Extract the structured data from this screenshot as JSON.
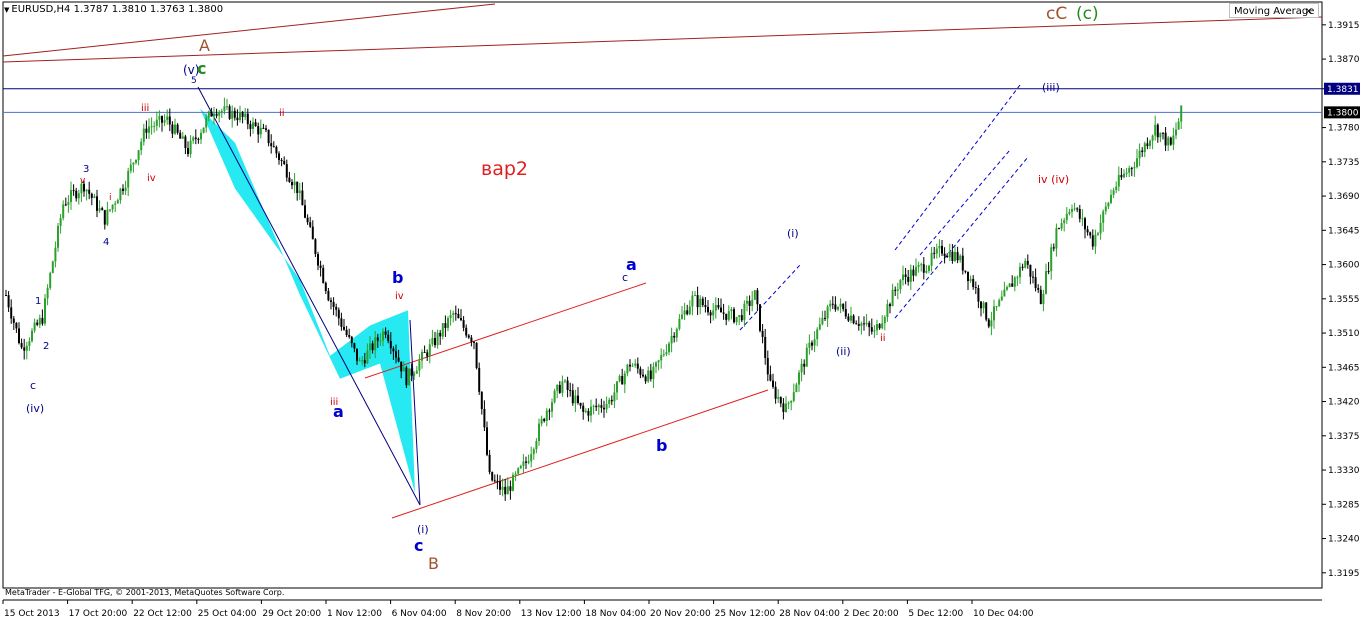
{
  "header": {
    "symbol_line": "EURUSD,H4  1.3787 1.3810 1.3763 1.3800",
    "indicator_label": "Moving Average",
    "close_glyph": "×"
  },
  "copyright": "MetaTrader - E-Global TFG, © 2001-2013, MetaQuotes Software Corp.",
  "chart_title": "вар2",
  "colors": {
    "bull_candle": "#2ca02c",
    "bear_candle": "#000000",
    "channel_red": "#e02020",
    "trend_brown": "#a02020",
    "level_blue": "#000080",
    "band_cyan": "#00e5ee",
    "wave_blue": "#00008b",
    "wave_red": "#d00000",
    "wave_green": "#228b22",
    "wave_brown": "#a0522d"
  },
  "chart_data": {
    "type": "candlestick",
    "symbol": "EURUSD",
    "timeframe": "H4",
    "last_bar": {
      "open": 1.3787,
      "high": 1.381,
      "low": 1.3763,
      "close": 1.38
    },
    "price_ticks": [
      "1.3915",
      "1.3870",
      "1.3831",
      "1.3780",
      "1.3735",
      "1.3690",
      "1.3645",
      "1.3600",
      "1.3555",
      "1.3510",
      "1.3465",
      "1.3420",
      "1.3375",
      "1.3330",
      "1.3285",
      "1.3240",
      "1.3195"
    ],
    "price_tick_values": [
      1.3915,
      1.387,
      1.3831,
      1.378,
      1.3735,
      1.369,
      1.3645,
      1.36,
      1.3555,
      1.351,
      1.3465,
      1.342,
      1.3375,
      1.333,
      1.3285,
      1.324,
      1.3195
    ],
    "highlighted_levels": [
      {
        "label": "1.3831",
        "value": 1.3831,
        "style": "dark"
      },
      {
        "label": "1.3800",
        "value": 1.38,
        "style": "current"
      }
    ],
    "time_ticks": [
      "15 Oct 2013",
      "17 Oct 20:00",
      "22 Oct 12:00",
      "25 Oct 04:00",
      "29 Oct 20:00",
      "1 Nov 12:00",
      "6 Nov 04:00",
      "8 Nov 20:00",
      "13 Nov 12:00",
      "18 Nov 04:00",
      "20 Nov 20:00",
      "25 Nov 12:00",
      "28 Nov 04:00",
      "2 Dec 20:00",
      "5 Dec 12:00",
      "10 Dec 04:00"
    ],
    "ylim": [
      1.3175,
      1.3945
    ],
    "bar_count": 248,
    "price_path": [
      [
        0,
        1.356
      ],
      [
        6,
        1.349
      ],
      [
        14,
        1.353
      ],
      [
        22,
        1.368
      ],
      [
        30,
        1.3705
      ],
      [
        38,
        1.366
      ],
      [
        46,
        1.371
      ],
      [
        54,
        1.378
      ],
      [
        62,
        1.379
      ],
      [
        70,
        1.375
      ],
      [
        80,
        1.3805
      ],
      [
        90,
        1.3795
      ],
      [
        100,
        1.377
      ],
      [
        112,
        1.37
      ],
      [
        124,
        1.356
      ],
      [
        136,
        1.347
      ],
      [
        146,
        1.3515
      ],
      [
        154,
        1.345
      ],
      [
        164,
        1.3495
      ],
      [
        172,
        1.3535
      ],
      [
        180,
        1.35
      ],
      [
        186,
        1.332
      ],
      [
        192,
        1.33
      ],
      [
        200,
        1.334
      ],
      [
        208,
        1.341
      ],
      [
        214,
        1.3445
      ],
      [
        222,
        1.3405
      ],
      [
        232,
        1.342
      ],
      [
        240,
        1.347
      ],
      [
        248,
        1.345
      ],
      [
        258,
        1.352
      ],
      [
        264,
        1.3555
      ],
      [
        272,
        1.354
      ],
      [
        282,
        1.353
      ],
      [
        288,
        1.356
      ],
      [
        294,
        1.344
      ],
      [
        300,
        1.341
      ],
      [
        310,
        1.35
      ],
      [
        318,
        1.355
      ],
      [
        326,
        1.353
      ],
      [
        334,
        1.351
      ],
      [
        344,
        1.358
      ],
      [
        354,
        1.36
      ],
      [
        360,
        1.362
      ],
      [
        366,
        1.361
      ],
      [
        372,
        1.3575
      ],
      [
        378,
        1.3525
      ],
      [
        386,
        1.357
      ],
      [
        392,
        1.3605
      ],
      [
        398,
        1.3555
      ],
      [
        404,
        1.3645
      ],
      [
        410,
        1.368
      ],
      [
        418,
        1.363
      ],
      [
        426,
        1.37
      ],
      [
        434,
        1.3735
      ],
      [
        442,
        1.378
      ],
      [
        448,
        1.3755
      ],
      [
        452,
        1.38
      ]
    ],
    "overlays": {
      "horizontal_levels": [
        1.3831,
        1.38
      ],
      "trend_lines": [
        {
          "color": "brown",
          "from": [
            0,
            1.3872
          ],
          "to": [
            225,
            1.3945
          ]
        },
        {
          "color": "brown",
          "from": [
            0,
            1.385
          ],
          "to": [
            600,
            1.3935
          ]
        },
        {
          "color": "red",
          "from": [
            180,
            1.349
          ],
          "to": [
            290,
            1.3585
          ]
        },
        {
          "color": "red",
          "from": [
            170,
            1.3305
          ],
          "to": [
            350,
            1.3468
          ]
        }
      ],
      "dashed_channel": {
        "color": "blue",
        "from_x": 430,
        "to_x": 505
      }
    },
    "wave_labels": [
      {
        "text": "cC",
        "color": "brown"
      },
      {
        "text": "(c)",
        "color": "green"
      },
      {
        "text": "A",
        "color": "brown"
      },
      {
        "text": "(v)",
        "color": "blue"
      },
      {
        "text": "c",
        "color": "green"
      },
      {
        "text": "5",
        "color": "blue"
      },
      {
        "text": "iii",
        "color": "red"
      },
      {
        "text": "ii",
        "color": "red"
      },
      {
        "text": "iv",
        "color": "red"
      },
      {
        "text": "3",
        "color": "blue"
      },
      {
        "text": "v",
        "color": "red"
      },
      {
        "text": "i",
        "color": "red"
      },
      {
        "text": "4",
        "color": "blue"
      },
      {
        "text": "1",
        "color": "blue"
      },
      {
        "text": "2",
        "color": "blue"
      },
      {
        "text": "c",
        "color": "blue"
      },
      {
        "text": "(iv)",
        "color": "blue"
      },
      {
        "text": "b",
        "color": "blue"
      },
      {
        "text": "a",
        "color": "blue"
      },
      {
        "text": "iii",
        "color": "red"
      },
      {
        "text": "iv",
        "color": "red"
      },
      {
        "text": "(i)",
        "color": "blue"
      },
      {
        "text": "c",
        "color": "blue"
      },
      {
        "text": "B",
        "color": "brown"
      },
      {
        "text": "a",
        "color": "blue"
      },
      {
        "text": "c",
        "color": "blue"
      },
      {
        "text": "b",
        "color": "blue"
      },
      {
        "text": "(i)",
        "color": "blue"
      },
      {
        "text": "(ii)",
        "color": "blue"
      },
      {
        "text": "(iii)",
        "color": "blue"
      },
      {
        "text": "iv (iv)",
        "color": "red"
      },
      {
        "text": "ii",
        "color": "red"
      }
    ]
  }
}
